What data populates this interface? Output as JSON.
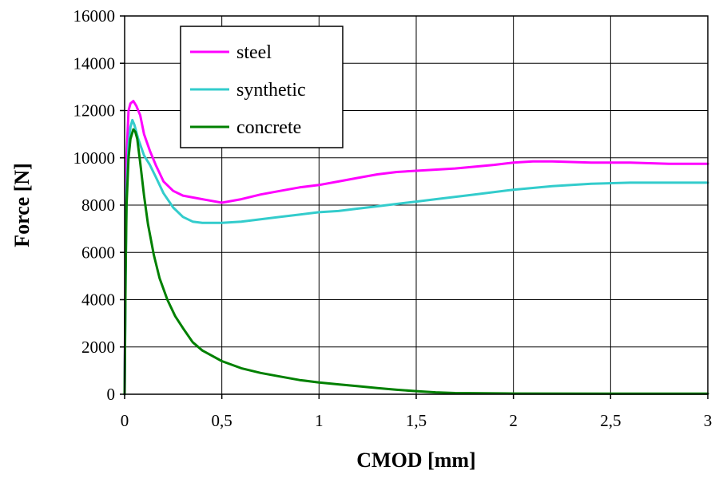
{
  "chart_data": {
    "type": "line",
    "xlabel": "CMOD [mm]",
    "ylabel": "Force [N]",
    "xlim": [
      0,
      3
    ],
    "ylim": [
      0,
      16000
    ],
    "x_ticks": [
      0,
      0.5,
      1,
      1.5,
      2,
      2.5,
      3
    ],
    "x_tick_labels": [
      "0",
      "0,5",
      "1",
      "1,5",
      "2",
      "2,5",
      "3"
    ],
    "y_ticks": [
      0,
      2000,
      4000,
      6000,
      8000,
      10000,
      12000,
      14000,
      16000
    ],
    "y_tick_labels": [
      "0",
      "2000",
      "4000",
      "6000",
      "8000",
      "10000",
      "12000",
      "14000",
      "16000"
    ],
    "grid": true,
    "legend_position": "top-left",
    "series": [
      {
        "name": "steel",
        "color": "#ff00ff",
        "x": [
          0,
          0.005,
          0.01,
          0.02,
          0.03,
          0.045,
          0.06,
          0.08,
          0.1,
          0.13,
          0.16,
          0.2,
          0.25,
          0.3,
          0.4,
          0.5,
          0.6,
          0.7,
          0.8,
          0.9,
          1.0,
          1.1,
          1.2,
          1.3,
          1.4,
          1.5,
          1.7,
          1.9,
          2.0,
          2.1,
          2.2,
          2.4,
          2.6,
          2.8,
          3.0
        ],
        "y": [
          0,
          6000,
          10000,
          12000,
          12300,
          12400,
          12200,
          11800,
          11000,
          10300,
          9700,
          9000,
          8600,
          8400,
          8250,
          8100,
          8250,
          8450,
          8600,
          8750,
          8850,
          9000,
          9150,
          9300,
          9400,
          9450,
          9550,
          9700,
          9800,
          9850,
          9850,
          9800,
          9800,
          9750,
          9750
        ]
      },
      {
        "name": "synthetic",
        "color": "#33cccc",
        "x": [
          0,
          0.005,
          0.01,
          0.02,
          0.03,
          0.04,
          0.05,
          0.07,
          0.1,
          0.13,
          0.16,
          0.2,
          0.25,
          0.3,
          0.35,
          0.4,
          0.5,
          0.6,
          0.7,
          0.8,
          0.9,
          1.0,
          1.1,
          1.2,
          1.3,
          1.4,
          1.5,
          1.6,
          1.8,
          2.0,
          2.2,
          2.4,
          2.6,
          2.8,
          3.0
        ],
        "y": [
          0,
          5000,
          8500,
          10500,
          11300,
          11600,
          11400,
          10800,
          10100,
          9700,
          9200,
          8500,
          7900,
          7500,
          7300,
          7250,
          7250,
          7300,
          7400,
          7500,
          7600,
          7700,
          7750,
          7850,
          7950,
          8050,
          8150,
          8250,
          8450,
          8650,
          8800,
          8900,
          8950,
          8950,
          8950
        ]
      },
      {
        "name": "concrete",
        "color": "#008000",
        "x": [
          0,
          0.005,
          0.01,
          0.02,
          0.03,
          0.045,
          0.055,
          0.065,
          0.08,
          0.1,
          0.12,
          0.15,
          0.18,
          0.22,
          0.26,
          0.3,
          0.35,
          0.4,
          0.5,
          0.6,
          0.7,
          0.8,
          0.9,
          1.0,
          1.1,
          1.2,
          1.3,
          1.4,
          1.5,
          1.6,
          1.7,
          2.0,
          2.5,
          3.0
        ],
        "y": [
          0,
          5000,
          8000,
          10000,
          10800,
          11200,
          11100,
          10800,
          9800,
          8400,
          7200,
          5900,
          4900,
          4000,
          3300,
          2800,
          2200,
          1850,
          1400,
          1100,
          900,
          750,
          600,
          500,
          420,
          340,
          260,
          190,
          130,
          80,
          50,
          30,
          25,
          25
        ]
      }
    ]
  }
}
